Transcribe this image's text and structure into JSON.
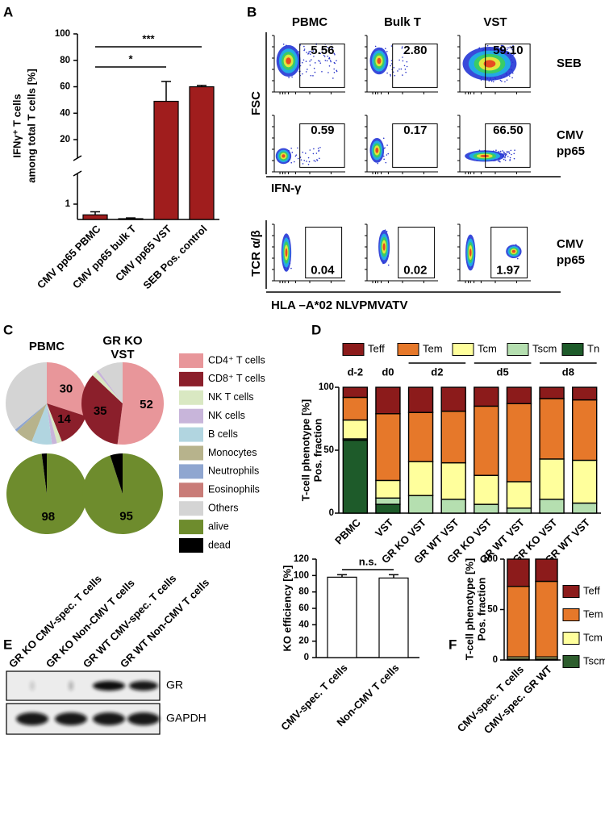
{
  "panel_labels": [
    "A",
    "B",
    "C",
    "D",
    "E",
    "F"
  ],
  "flow": {
    "columns": [
      "PBMC",
      "Bulk T",
      "VST"
    ],
    "rows": [
      {
        "label": [
          "SEB"
        ],
        "values": [
          "5.56",
          "2.80",
          "59.10"
        ]
      },
      {
        "label": [
          "CMV",
          "pp65"
        ],
        "values": [
          "0.59",
          "0.17",
          "66.50"
        ]
      },
      {
        "label": [
          "CMV",
          "pp65"
        ],
        "values": [
          "0.04",
          "0.02",
          "1.97"
        ]
      }
    ],
    "y_labels": [
      "FSC",
      "TCR α/β"
    ],
    "x_labels": [
      "IFN-γ",
      "HLA –A*02 NLVPMVATV"
    ]
  },
  "blot": {
    "lanes": [
      "GR KO CMV-spec. T cells",
      "GR KO Non-CMV T cells",
      "GR WT CMV-spec. T cells",
      "GR WT Non-CMV T cells"
    ],
    "bands": [
      "GR",
      "GAPDH"
    ]
  },
  "chart_data": [
    {
      "type": "bar",
      "y_label": [
        "IFNγ⁺ T cells",
        "among total T cells [%]"
      ],
      "categories": [
        "CMV pp65 PBMC",
        "CMV pp65 bulk T",
        "CMV pp65 VST",
        "SEB Pos. control"
      ],
      "values": [
        0.3,
        0.05,
        49,
        60
      ],
      "errors": [
        0.2,
        0.05,
        15,
        1
      ],
      "color": "#a01d1d",
      "ylim": [
        0,
        100
      ],
      "ybreak": [
        3,
        6
      ],
      "yticks": [
        1,
        20,
        40,
        60,
        80,
        100
      ],
      "annotations": [
        {
          "text": "*",
          "between": [
            "CMV pp65 PBMC",
            "CMV pp65 VST"
          ]
        },
        {
          "text": "***",
          "between": [
            "CMV pp65 PBMC",
            "SEB Pos. control"
          ]
        }
      ]
    },
    {
      "type": "pie",
      "categories": [
        "CD4⁺ T cells",
        "CD8⁺ T cells",
        "NK T cells",
        "NK cells",
        "B cells",
        "Monocytes",
        "Neutrophils",
        "Eosinophils",
        "Others"
      ],
      "colors": [
        "#e8969a",
        "#8b1f2b",
        "#d9e8c2",
        "#c8b5da",
        "#b1d5e0",
        "#b7b38c",
        "#8fa6d0",
        "#c97c78",
        "#d4d4d4"
      ],
      "pies": [
        {
          "title": [
            "PBMC"
          ],
          "values": [
            30,
            14,
            2,
            2,
            8,
            7,
            1,
            0,
            36
          ],
          "value_labels": [
            "30",
            "14",
            null,
            null,
            null,
            null,
            null,
            null,
            null
          ]
        },
        {
          "title": [
            "GR KO",
            "VST"
          ],
          "values": [
            52,
            35,
            2,
            1,
            0,
            0,
            0,
            0,
            10
          ],
          "value_labels": [
            "52",
            "35",
            null,
            null,
            null,
            null,
            null,
            null,
            null
          ]
        }
      ]
    },
    {
      "type": "pie",
      "categories": [
        "alive",
        "dead"
      ],
      "colors": [
        "#6e8c2d",
        "#000000"
      ],
      "pies": [
        {
          "values": [
            98,
            2
          ],
          "value_labels": [
            "98",
            null
          ]
        },
        {
          "values": [
            95,
            5
          ],
          "value_labels": [
            "95",
            null
          ]
        }
      ]
    },
    {
      "type": "stacked_bar",
      "y_label": [
        "T-cell phenotype [%]",
        "Pos. fraction"
      ],
      "categories": [
        "PBMC",
        "VST",
        "GR KO VST",
        "GR WT VST",
        "GR KO VST",
        "GR WT VST",
        "GR KO VST",
        "GR WT VST"
      ],
      "groups": [
        "d-2",
        "d0",
        "d2",
        "d2",
        "d5",
        "d5",
        "d8",
        "d8"
      ],
      "ylim": [
        0,
        100
      ],
      "yticks": [
        0,
        50,
        100
      ],
      "series": [
        {
          "name": "Teff",
          "color": "#8c1b1b",
          "values": [
            8,
            21,
            20,
            19,
            15,
            13,
            9,
            10
          ]
        },
        {
          "name": "Tem",
          "color": "#e6782a",
          "values": [
            18,
            53,
            39,
            41,
            55,
            62,
            48,
            48
          ]
        },
        {
          "name": "Tcm",
          "color": "#ffff9c",
          "values": [
            15,
            14,
            27,
            29,
            23,
            21,
            32,
            34
          ]
        },
        {
          "name": "Tscm",
          "color": "#b5dfb0",
          "values": [
            1,
            5,
            14,
            11,
            7,
            4,
            11,
            8
          ]
        },
        {
          "name": "Tn",
          "color": "#1e5b2a",
          "values": [
            58,
            7,
            0,
            0,
            0,
            0,
            0,
            0
          ]
        }
      ]
    },
    {
      "type": "bar",
      "y_label": [
        "KO efficiency [%]"
      ],
      "categories": [
        "CMV-spec. T cells",
        "Non-CMV T cells"
      ],
      "values": [
        98,
        97
      ],
      "errors": [
        3,
        4
      ],
      "color": "#ffffff",
      "ylim": [
        0,
        120
      ],
      "yticks": [
        0,
        20,
        40,
        60,
        80,
        100,
        120
      ],
      "annotations": [
        {
          "text": "n.s.",
          "between": [
            "CMV-spec. T cells",
            "Non-CMV T cells"
          ]
        }
      ]
    },
    {
      "type": "stacked_bar",
      "y_label": [
        "T-cell phenotype [%]",
        "Pos. fraction"
      ],
      "categories": [
        "CMV-spec. T cells",
        "CMV-spec. GR WT"
      ],
      "ylim": [
        0,
        100
      ],
      "yticks": [
        0,
        50,
        100
      ],
      "series": [
        {
          "name": "Teff",
          "color": "#8c1b1b",
          "values": [
            27,
            22
          ]
        },
        {
          "name": "Tem",
          "color": "#e6782a",
          "values": [
            70,
            75
          ]
        },
        {
          "name": "Tcm",
          "color": "#ffff9c",
          "values": [
            2,
            2
          ]
        },
        {
          "name": "Tscm",
          "color": "#2e5e2e",
          "values": [
            1,
            1
          ]
        }
      ]
    }
  ]
}
